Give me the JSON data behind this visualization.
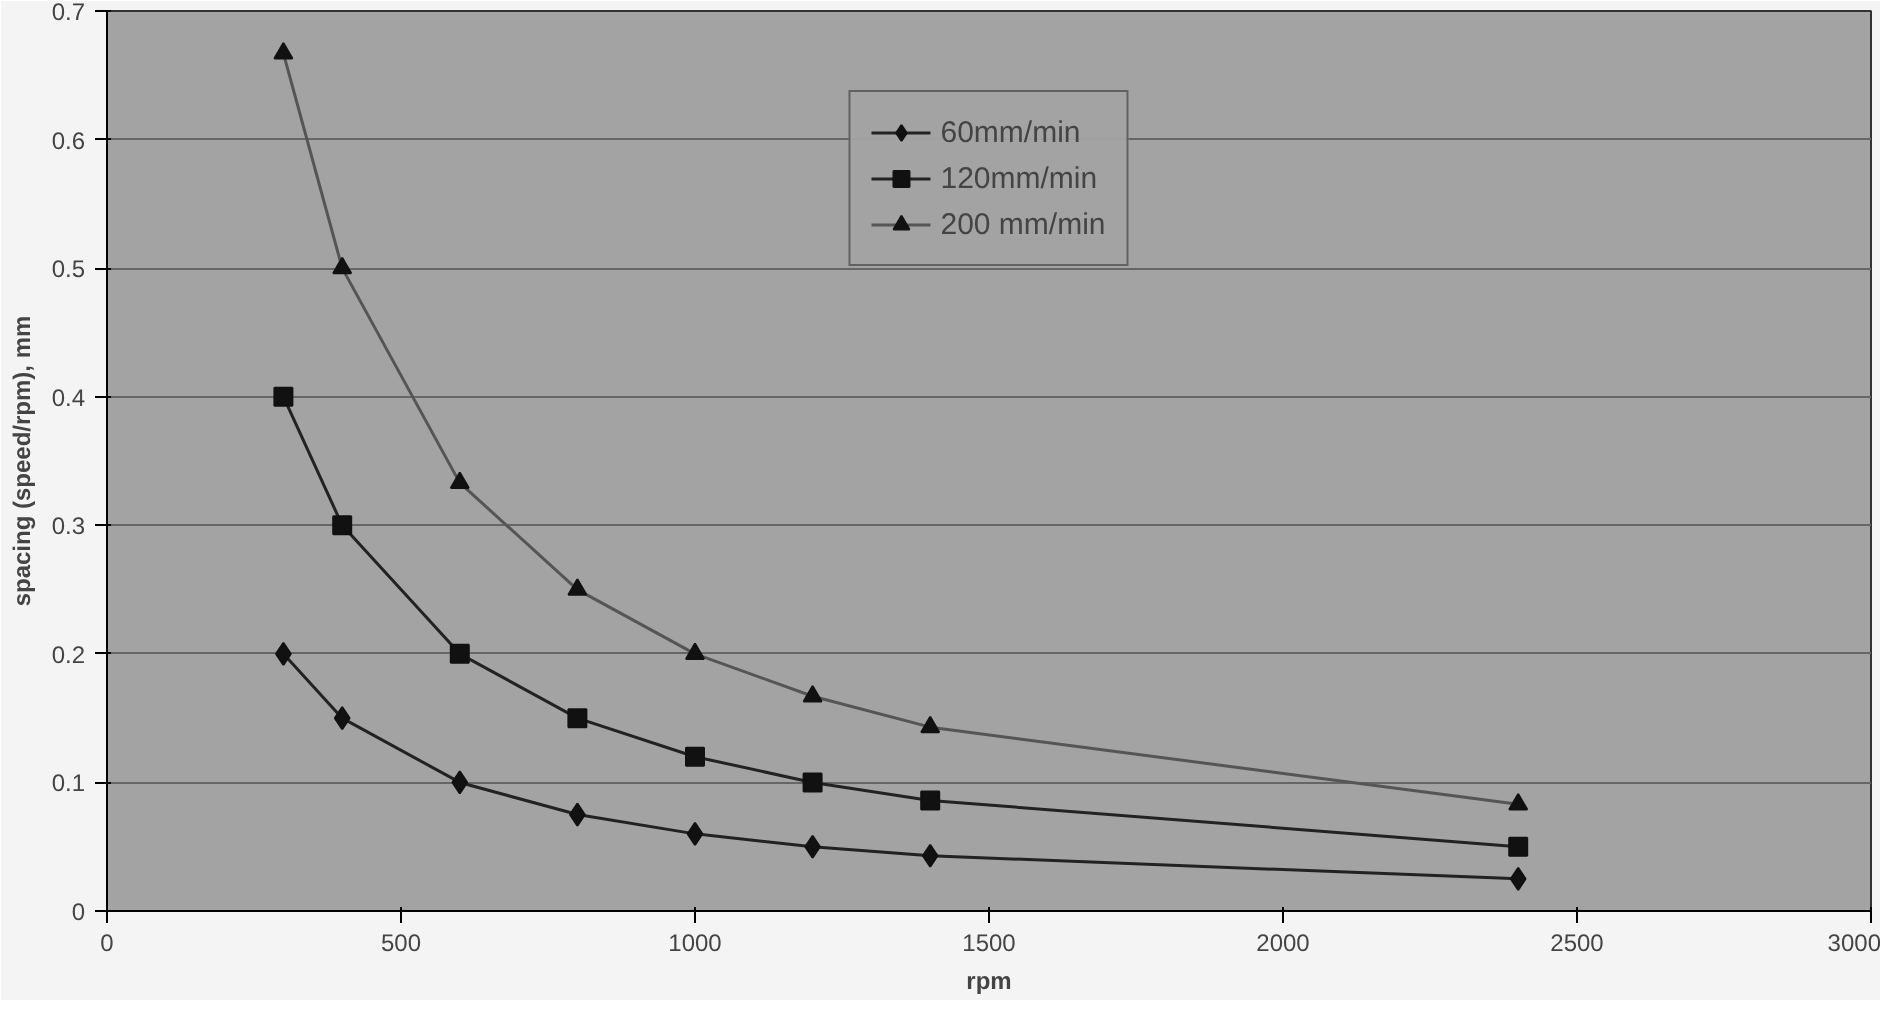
{
  "chart_data": {
    "type": "line",
    "xlabel": "rpm",
    "ylabel": "spacing (speed/rpm), mm",
    "x": [
      300,
      400,
      600,
      800,
      1000,
      1200,
      1400,
      2400
    ],
    "series": [
      {
        "name": "60mm/min",
        "color": "#222222",
        "marker": "diamond",
        "values": [
          0.2,
          0.15,
          0.1,
          0.075,
          0.06,
          0.05,
          0.043,
          0.025
        ]
      },
      {
        "name": "120mm/min",
        "color": "#222222",
        "marker": "square",
        "values": [
          0.4,
          0.3,
          0.2,
          0.15,
          0.12,
          0.1,
          0.086,
          0.05
        ]
      },
      {
        "name": "200 mm/min",
        "color": "#555555",
        "marker": "triangle",
        "values": [
          0.667,
          0.5,
          0.333,
          0.25,
          0.2,
          0.167,
          0.143,
          0.083
        ]
      }
    ],
    "xlim": [
      0,
      3000
    ],
    "xticks": [
      0,
      500,
      1000,
      1500,
      2000,
      2500,
      3000
    ],
    "ylim": [
      0,
      0.7
    ],
    "yticks": [
      0,
      0.1,
      0.2,
      0.3,
      0.4,
      0.5,
      0.6,
      0.7
    ],
    "grid": "y",
    "legend": "top",
    "line_style": "solid"
  }
}
